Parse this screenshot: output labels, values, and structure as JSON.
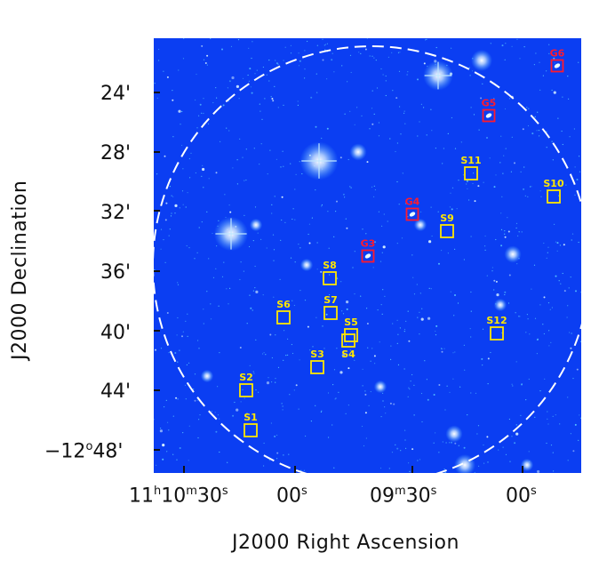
{
  "axes": {
    "xlabel": "J2000 Right Ascension",
    "ylabel": "J2000 Declination",
    "x_ticks": [
      {
        "h": "11",
        "hs": "h",
        "m": "10",
        "ms": "m",
        "s": "30",
        "ss": "s"
      },
      {
        "s": "00",
        "ss": "s"
      },
      {
        "m": "09",
        "ms": "m",
        "s": "30",
        "ss": "s"
      },
      {
        "s": "00",
        "ss": "s"
      }
    ],
    "y_ticks": [
      "24'",
      "28'",
      "32'",
      "36'",
      "40'",
      "44'"
    ],
    "y_tick_last": {
      "pre": "−12",
      "deg": "o",
      "post": "48'"
    }
  },
  "sky": {
    "background": "#0b3ef2",
    "circle_color": "#ffffff"
  },
  "markers": [
    {
      "label": "S1",
      "color": "yellow"
    },
    {
      "label": "S2",
      "color": "yellow"
    },
    {
      "label": "S3",
      "color": "yellow"
    },
    {
      "label": "S4",
      "color": "yellow"
    },
    {
      "label": "S5",
      "color": "yellow"
    },
    {
      "label": "S6",
      "color": "yellow"
    },
    {
      "label": "S7",
      "color": "yellow"
    },
    {
      "label": "S8",
      "color": "yellow"
    },
    {
      "label": "S9",
      "color": "yellow"
    },
    {
      "label": "S10",
      "color": "yellow"
    },
    {
      "label": "S11",
      "color": "yellow"
    },
    {
      "label": "S12",
      "color": "yellow"
    },
    {
      "label": "G3",
      "color": "red"
    },
    {
      "label": "G4",
      "color": "red"
    },
    {
      "label": "G5",
      "color": "red"
    },
    {
      "label": "G6",
      "color": "red"
    }
  ]
}
